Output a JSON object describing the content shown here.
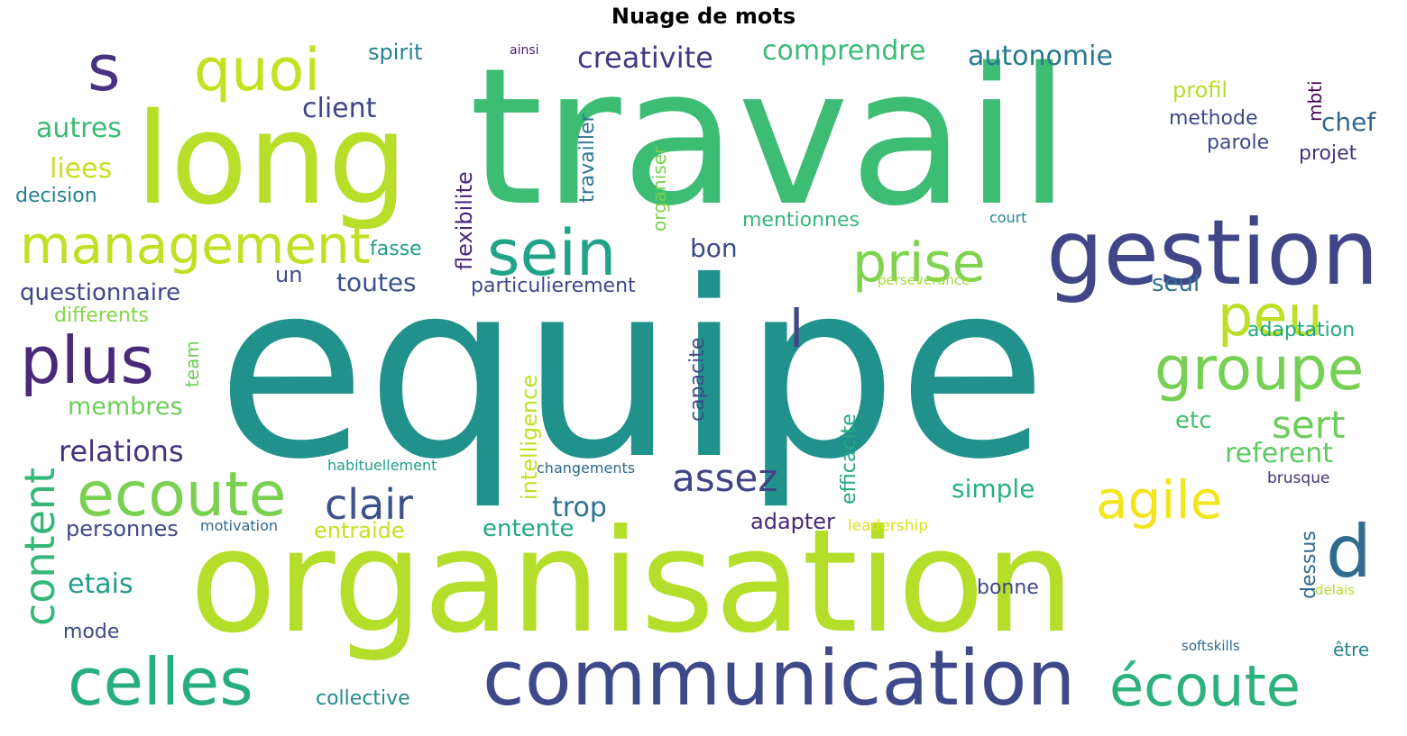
{
  "title": "Nuage de mots",
  "palette": [
    "#440154",
    "#482878",
    "#3e4989",
    "#31688e",
    "#26828e",
    "#1f9e89",
    "#35b779",
    "#6ece58",
    "#b5de2b",
    "#fde725"
  ],
  "words": [
    {
      "text": "equipe",
      "color": "#21918c"
    },
    {
      "text": "travail",
      "color": "#3dbc74"
    },
    {
      "text": "organisation",
      "color": "#b5de2b"
    },
    {
      "text": "long",
      "color": "#b8de29"
    },
    {
      "text": "communication",
      "color": "#3e4989"
    },
    {
      "text": "gestion",
      "color": "#404688"
    },
    {
      "text": "management",
      "color": "#c2df23"
    },
    {
      "text": "ecoute",
      "color": "#7ad151"
    },
    {
      "text": "celles",
      "color": "#27ad81"
    },
    {
      "text": "écoute",
      "color": "#2db27d"
    },
    {
      "text": "plus",
      "color": "#472a7a"
    },
    {
      "text": "quoi",
      "color": "#c5e021"
    },
    {
      "text": "sein",
      "color": "#20a386"
    },
    {
      "text": "groupe",
      "color": "#75d054"
    },
    {
      "text": "prise",
      "color": "#7fd34e"
    },
    {
      "text": "peu",
      "color": "#bddf26"
    },
    {
      "text": "agile",
      "color": "#f1e51d"
    },
    {
      "text": "d",
      "color": "#2f6c8e"
    },
    {
      "text": "s",
      "color": "#46327e"
    },
    {
      "text": "l",
      "color": "#404688"
    },
    {
      "text": "clair",
      "color": "#3b528b"
    },
    {
      "text": "assez",
      "color": "#414487"
    },
    {
      "text": "sert",
      "color": "#6ccd5a"
    },
    {
      "text": "content",
      "color": "#35b779"
    },
    {
      "text": "relations",
      "color": "#46327e"
    },
    {
      "text": "creativite",
      "color": "#453781"
    },
    {
      "text": "comprendre",
      "color": "#3bbb75"
    },
    {
      "text": "autonomie",
      "color": "#2a788e"
    },
    {
      "text": "client",
      "color": "#414487"
    },
    {
      "text": "autres",
      "color": "#3bbb75"
    },
    {
      "text": "liees",
      "color": "#c8e020"
    },
    {
      "text": "decision",
      "color": "#26828e"
    },
    {
      "text": "questionnaire",
      "color": "#404688"
    },
    {
      "text": "differents",
      "color": "#86d549"
    },
    {
      "text": "membres",
      "color": "#6ece58"
    },
    {
      "text": "toutes",
      "color": "#3b528b"
    },
    {
      "text": "bon",
      "color": "#3e4989"
    },
    {
      "text": "un",
      "color": "#3e4989"
    },
    {
      "text": "fasse",
      "color": "#1f9e89"
    },
    {
      "text": "particulierement",
      "color": "#3e4989"
    },
    {
      "text": "seul",
      "color": "#2c728e"
    },
    {
      "text": "simple",
      "color": "#29af7f"
    },
    {
      "text": "referent",
      "color": "#5ec962"
    },
    {
      "text": "etc",
      "color": "#44bf70"
    },
    {
      "text": "trop",
      "color": "#2c728e"
    },
    {
      "text": "entente",
      "color": "#22a884"
    },
    {
      "text": "adapter",
      "color": "#482878"
    },
    {
      "text": "entraide",
      "color": "#c8e020"
    },
    {
      "text": "personnes",
      "color": "#3e4989"
    },
    {
      "text": "etais",
      "color": "#1f9e89"
    },
    {
      "text": "mode",
      "color": "#3e4989"
    },
    {
      "text": "collective",
      "color": "#23898e"
    },
    {
      "text": "bonne",
      "color": "#3e4989"
    },
    {
      "text": "spirit",
      "color": "#26828e"
    },
    {
      "text": "ainsi",
      "color": "#481f70"
    },
    {
      "text": "profil",
      "color": "#b5de2b"
    },
    {
      "text": "methode",
      "color": "#3e4989"
    },
    {
      "text": "parole",
      "color": "#3e4989"
    },
    {
      "text": "chef",
      "color": "#31688e"
    },
    {
      "text": "projet",
      "color": "#46327e"
    },
    {
      "text": "mentionnes",
      "color": "#35b779"
    },
    {
      "text": "court",
      "color": "#26828e"
    },
    {
      "text": "adaptation",
      "color": "#22a884"
    },
    {
      "text": "perseverance",
      "color": "#a0da39"
    },
    {
      "text": "habituellement",
      "color": "#1fa088"
    },
    {
      "text": "changements",
      "color": "#31688e"
    },
    {
      "text": "motivation",
      "color": "#31688e"
    },
    {
      "text": "leadership",
      "color": "#d8e219"
    },
    {
      "text": "brusque",
      "color": "#46327e"
    },
    {
      "text": "delais",
      "color": "#b5de2b"
    },
    {
      "text": "softskills",
      "color": "#31688e"
    },
    {
      "text": "être",
      "color": "#26828e"
    },
    {
      "text": "dessus",
      "color": "#31688e"
    },
    {
      "text": "mbti",
      "color": "#440154"
    },
    {
      "text": "flexibilite",
      "color": "#482878"
    },
    {
      "text": "travailler",
      "color": "#2a788e"
    },
    {
      "text": "organiser",
      "color": "#7ad151"
    },
    {
      "text": "capacite",
      "color": "#3e4989"
    },
    {
      "text": "intelligence",
      "color": "#c2df23"
    },
    {
      "text": "efficacite",
      "color": "#22a884"
    },
    {
      "text": "team",
      "color": "#6ece58"
    }
  ]
}
